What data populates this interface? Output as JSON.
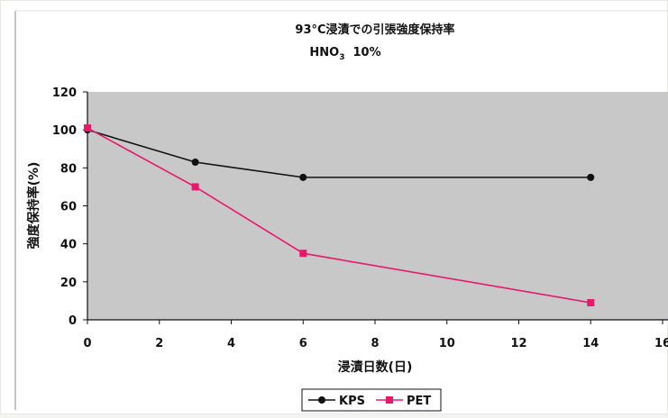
{
  "chart_data": {
    "type": "line",
    "title": "93°C浸漬での引張強度保持率",
    "subtitle_main": "HNO",
    "subtitle_sub": "3",
    "subtitle_tail": "  10%",
    "xlabel": "浸漬日数(日)",
    "ylabel": "強度保持率(%)",
    "xlim": [
      0,
      16
    ],
    "ylim": [
      0,
      120
    ],
    "x_ticks": [
      0,
      2,
      4,
      6,
      8,
      10,
      12,
      14,
      16
    ],
    "y_ticks": [
      0,
      20,
      40,
      60,
      80,
      100,
      120
    ],
    "grid": false,
    "legend_position": "bottom",
    "series": [
      {
        "name": "KPS",
        "color": "#111111",
        "marker": "diamond",
        "x": [
          0,
          3,
          6,
          14
        ],
        "values": [
          100,
          83,
          75,
          75
        ]
      },
      {
        "name": "PET",
        "color": "#e8196b",
        "marker": "square",
        "x": [
          0,
          3,
          6,
          14
        ],
        "values": [
          101,
          70,
          35,
          9
        ]
      }
    ],
    "colors": {
      "plot_background": "#c8c8c8",
      "page_background": "#ffffff"
    }
  }
}
